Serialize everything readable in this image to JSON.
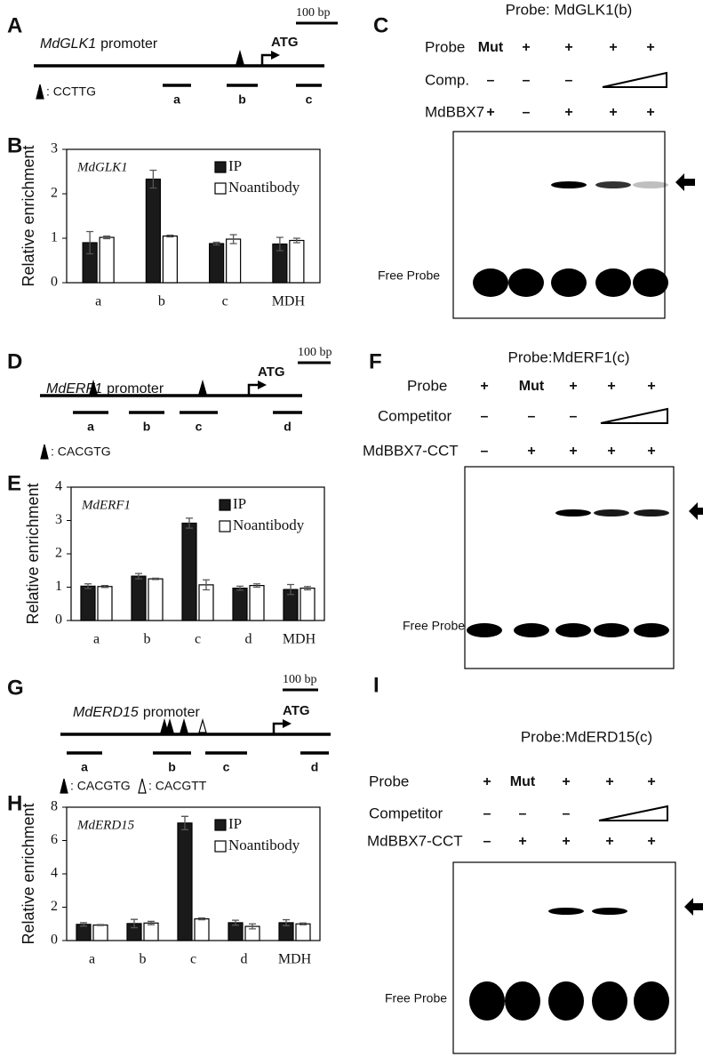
{
  "diagrams": [
    {
      "letter": "A",
      "gene": "MdGLK1",
      "suffix": "promoter",
      "scale": "100 bp",
      "start": "ATG",
      "fragments": [
        "a",
        "b",
        "c"
      ],
      "motifs": [
        ": CCTTG"
      ]
    },
    {
      "letter": "D",
      "gene": "MdERF1",
      "suffix": "promoter",
      "scale": "100 bp",
      "start": "ATG",
      "fragments": [
        "a",
        "b",
        "c",
        "d"
      ],
      "motifs": [
        ": CACGTG"
      ]
    },
    {
      "letter": "G",
      "gene": "MdERD15",
      "suffix": "promoter",
      "scale": "100 bp",
      "start": "ATG",
      "fragments": [
        "a",
        "b",
        "c",
        "d"
      ],
      "motifs": [
        ": CACGTG",
        ": CACGTT"
      ]
    }
  ],
  "chart_data": [
    {
      "type": "bar",
      "panel_label": "B",
      "annotation": "MdGLK1",
      "ylabel": "Relative enrichment",
      "categories": [
        "a",
        "b",
        "c",
        "MDH"
      ],
      "series": [
        {
          "name": "IP",
          "color": "#1a1a1a",
          "values": [
            0.9,
            2.33,
            0.88,
            0.87
          ],
          "errors": [
            0.25,
            0.2,
            0.03,
            0.15
          ]
        },
        {
          "name": "Noantibody",
          "color": "#ffffff",
          "values": [
            1.02,
            1.05,
            0.98,
            0.95
          ],
          "errors": [
            0.03,
            0.02,
            0.1,
            0.05
          ]
        }
      ],
      "ylim": [
        0,
        3
      ],
      "yticks": [
        0,
        1,
        2,
        3
      ]
    },
    {
      "type": "bar",
      "panel_label": "E",
      "annotation": "MdERF1",
      "ylabel": "Relative enrichment",
      "categories": [
        "a",
        "b",
        "c",
        "d",
        "MDH"
      ],
      "series": [
        {
          "name": "IP",
          "color": "#1a1a1a",
          "values": [
            1.03,
            1.33,
            2.92,
            0.97,
            0.93
          ],
          "errors": [
            0.07,
            0.08,
            0.15,
            0.06,
            0.15
          ]
        },
        {
          "name": "Noantibody",
          "color": "#ffffff",
          "values": [
            1.02,
            1.25,
            1.07,
            1.05,
            0.97
          ],
          "errors": [
            0.03,
            0.02,
            0.15,
            0.05,
            0.05
          ]
        }
      ],
      "ylim": [
        0,
        4
      ],
      "yticks": [
        0,
        1,
        2,
        3,
        4
      ]
    },
    {
      "type": "bar",
      "panel_label": "H",
      "annotation": "MdERD15",
      "ylabel": "Relative enrichment",
      "categories": [
        "a",
        "b",
        "c",
        "d",
        "MDH"
      ],
      "series": [
        {
          "name": "IP",
          "color": "#1a1a1a",
          "values": [
            0.97,
            1.02,
            7.05,
            1.07,
            1.07
          ],
          "errors": [
            0.1,
            0.25,
            0.4,
            0.15,
            0.18
          ]
        },
        {
          "name": "Noantibody",
          "color": "#ffffff",
          "values": [
            0.93,
            1.05,
            1.3,
            0.85,
            1.0
          ],
          "errors": [
            0.03,
            0.1,
            0.05,
            0.15,
            0.05
          ]
        }
      ],
      "ylim": [
        0,
        8
      ],
      "yticks": [
        0,
        2,
        4,
        6,
        8
      ]
    }
  ],
  "emsa": [
    {
      "letter": "C",
      "title": "Probe: MdGLK1(b)",
      "free": "Free Probe",
      "rows": [
        {
          "label": "Probe",
          "cells": [
            "Mut",
            "+",
            "+",
            "+",
            "+"
          ]
        },
        {
          "label": "Comp.",
          "cells": [
            "–",
            "–",
            "–"
          ]
        },
        {
          "label": "MdBBX7",
          "cells": [
            "+",
            "–",
            "+",
            "+",
            "+"
          ]
        }
      ]
    },
    {
      "letter": "F",
      "title": "Probe:MdERF1(c)",
      "free": "Free Probe",
      "rows": [
        {
          "label": "Probe",
          "cells": [
            "+",
            "Mut",
            "+",
            "+",
            "+"
          ]
        },
        {
          "label": "Competitor",
          "cells": [
            "–",
            "–",
            "–"
          ]
        },
        {
          "label": "MdBBX7-CCT",
          "cells": [
            "–",
            "+",
            "+",
            "+",
            "+"
          ]
        }
      ]
    },
    {
      "letter": "I",
      "title": "Probe:MdERD15(c)",
      "free": "Free Probe",
      "rows": [
        {
          "label": "Probe",
          "cells": [
            "+",
            "Mut",
            "+",
            "+",
            "+"
          ]
        },
        {
          "label": "Competitor",
          "cells": [
            "–",
            "–",
            "–"
          ]
        },
        {
          "label": "MdBBX7-CCT",
          "cells": [
            "–",
            "+",
            "+",
            "+",
            "+"
          ]
        }
      ]
    }
  ]
}
